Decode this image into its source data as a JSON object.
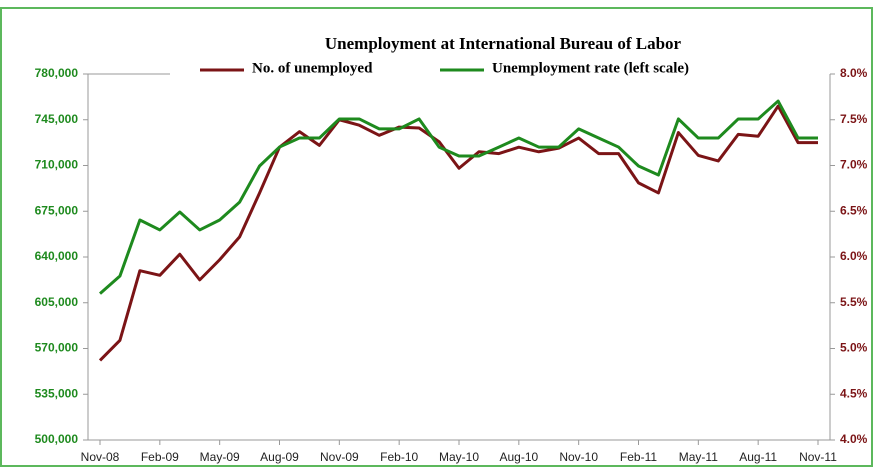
{
  "chart_data": {
    "type": "line",
    "title": "Unemployment at International Bureau of Labor",
    "categories": [
      "Nov-08",
      null,
      null,
      "Feb-09",
      null,
      null,
      "May-09",
      null,
      null,
      "Aug-09",
      null,
      null,
      "Nov-09",
      null,
      null,
      "Feb-10",
      null,
      null,
      "May-10",
      null,
      null,
      "Aug-10",
      null,
      null,
      "Nov-10",
      null,
      null,
      "Feb-11",
      null,
      null,
      "May-11",
      null,
      null,
      "Aug-11",
      null,
      null,
      "Nov-11"
    ],
    "series": [
      {
        "name": "No. of unemployed",
        "color": "#7b1416",
        "axis": "y2",
        "values": [
          4.87,
          5.09,
          5.85,
          5.8,
          6.03,
          5.75,
          5.97,
          6.22,
          6.7,
          7.2,
          7.37,
          7.22,
          7.5,
          7.44,
          7.33,
          7.42,
          7.41,
          7.26,
          6.97,
          7.15,
          7.13,
          7.2,
          7.15,
          7.19,
          7.3,
          7.13,
          7.13,
          6.81,
          6.7,
          7.36,
          7.11,
          7.05,
          7.34,
          7.32,
          7.65,
          7.25,
          7.25
        ]
      },
      {
        "name": "Unemployment rate (left scale)",
        "color": "#1e8a1e",
        "values": [
          612000,
          625500,
          668300,
          660700,
          674400,
          660700,
          668300,
          682000,
          709600,
          724100,
          731000,
          731000,
          745600,
          745600,
          738000,
          738000,
          745600,
          724100,
          717300,
          717300,
          724100,
          731000,
          724100,
          724100,
          738000,
          731000,
          724100,
          709600,
          702700,
          745600,
          731000,
          731000,
          745600,
          745600,
          759300,
          731000,
          731000
        ]
      }
    ],
    "ylim": [
      500000,
      780000
    ],
    "yticks": [
      {
        "value": 500000,
        "label": "500,000"
      },
      {
        "value": 535000,
        "label": "535,000"
      },
      {
        "value": 570000,
        "label": "570,000"
      },
      {
        "value": 605000,
        "label": "605,000"
      },
      {
        "value": 640000,
        "label": "640,000"
      },
      {
        "value": 675000,
        "label": "675,000"
      },
      {
        "value": 710000,
        "label": "710,000"
      },
      {
        "value": 745000,
        "label": "745,000"
      },
      {
        "value": 780000,
        "label": "780,000"
      }
    ],
    "y2lim": [
      4.0,
      8.0
    ],
    "y2ticks": [
      {
        "value": 4.0,
        "label": "4.0%"
      },
      {
        "value": 4.5,
        "label": "4.5%"
      },
      {
        "value": 5.0,
        "label": "5.0%"
      },
      {
        "value": 5.5,
        "label": "5.5%"
      },
      {
        "value": 6.0,
        "label": "6.0%"
      },
      {
        "value": 6.5,
        "label": "6.5%"
      },
      {
        "value": 7.0,
        "label": "7.0%"
      },
      {
        "value": 7.5,
        "label": "7.5%"
      },
      {
        "value": 8.0,
        "label": "8.0%"
      }
    ],
    "ytick_color": "#1e8a1e",
    "y2tick_color": "#7b1416"
  }
}
